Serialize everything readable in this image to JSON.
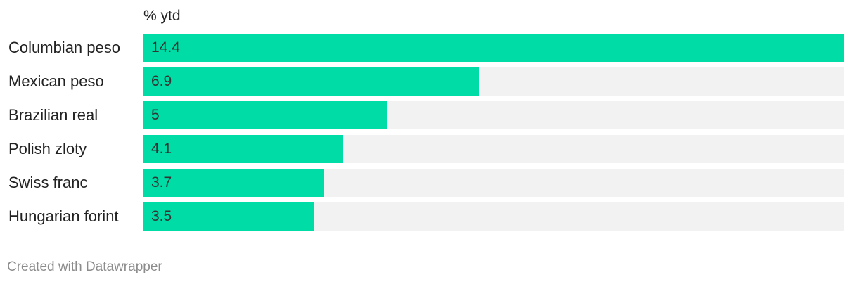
{
  "chart_data": {
    "type": "bar",
    "orientation": "horizontal",
    "column_header": "% ytd",
    "categories": [
      "Columbian peso",
      "Mexican peso",
      "Brazilian real",
      "Polish zloty",
      "Swiss franc",
      "Hungarian forint"
    ],
    "values": [
      14.4,
      6.9,
      5,
      4.1,
      3.7,
      3.5
    ],
    "value_labels": [
      "14.4",
      "6.9",
      "5",
      "4.1",
      "3.7",
      "3.5"
    ],
    "xlim": [
      0,
      14.4
    ],
    "grid": false,
    "legend": "none"
  },
  "colors": {
    "bar": "#00dca6",
    "track": "#f2f2f2",
    "text": "#222222",
    "footer": "#8c8c8c"
  },
  "footer": {
    "credit": "Created with Datawrapper"
  }
}
